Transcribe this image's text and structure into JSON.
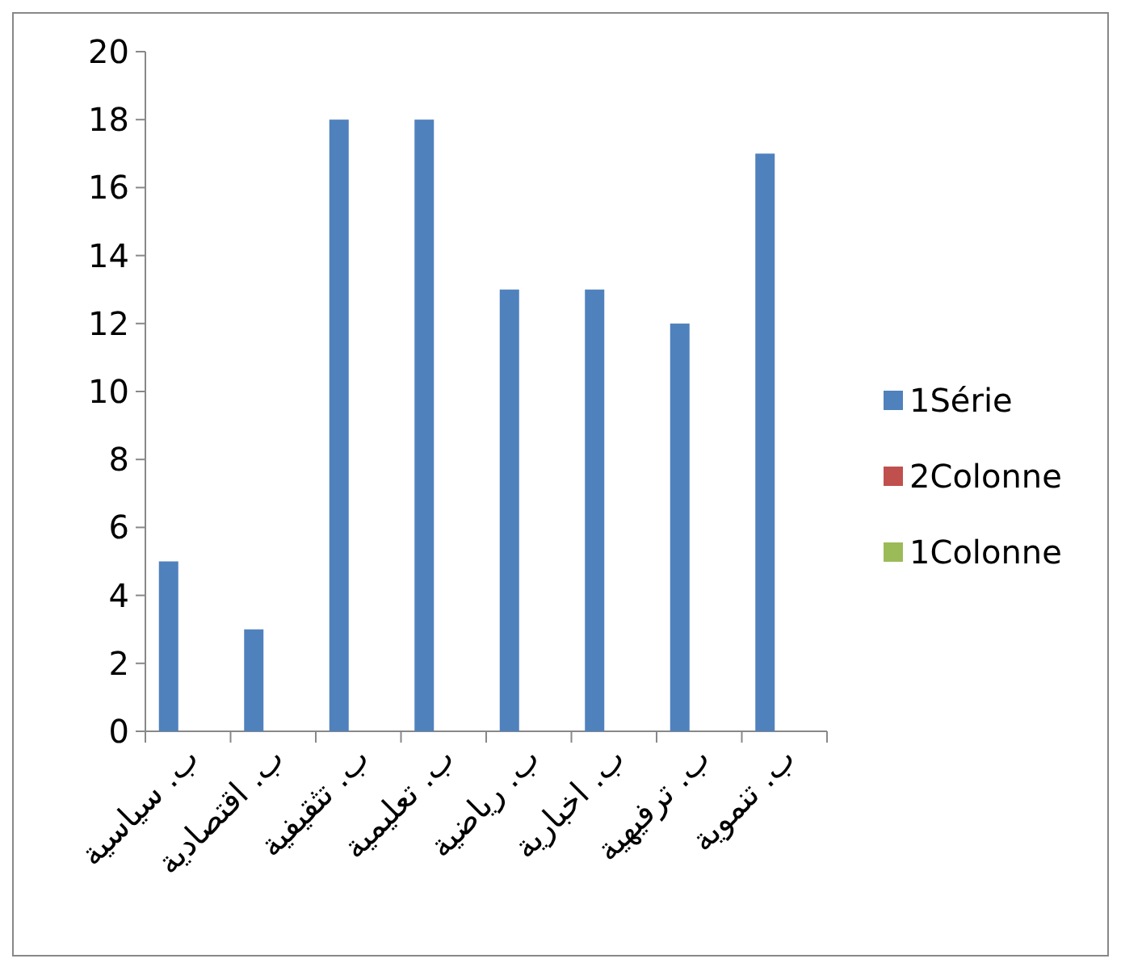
{
  "chart_data": {
    "type": "bar",
    "categories": [
      "ب. سياسية",
      "ب. اقتصادية",
      "ب. تثقيفية",
      "ب. تعليمية",
      "ب. رياضية",
      "ب. اخبارية",
      "ب. ترفيهية",
      "ب. تنموية"
    ],
    "series": [
      {
        "name": "1Série",
        "color": "#4f81bd",
        "values": [
          5,
          3,
          18,
          18,
          13,
          13,
          12,
          17
        ]
      },
      {
        "name": "2Colonne",
        "color": "#c0504d",
        "values": [
          null,
          null,
          null,
          null,
          null,
          null,
          null,
          null
        ]
      },
      {
        "name": "1Colonne",
        "color": "#9bbb59",
        "values": [
          null,
          null,
          null,
          null,
          null,
          null,
          null,
          null
        ]
      }
    ],
    "ylim": [
      0,
      20
    ],
    "yticks": [
      0,
      2,
      4,
      6,
      8,
      10,
      12,
      14,
      16,
      18,
      20
    ],
    "grid": false,
    "legend": "right"
  }
}
